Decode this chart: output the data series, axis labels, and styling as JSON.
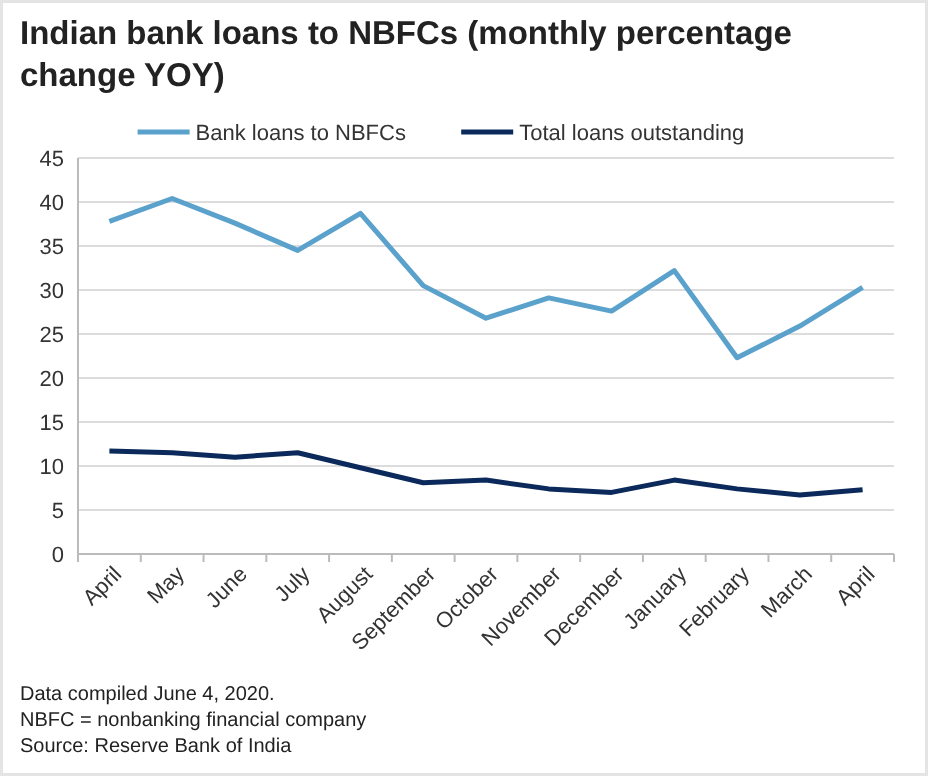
{
  "chart_data": {
    "type": "line",
    "title": "Indian bank loans to NBFCs (monthly percentage change YOY)",
    "categories": [
      "April",
      "May",
      "June",
      "July",
      "August",
      "September",
      "October",
      "November",
      "December",
      "January",
      "February",
      "March",
      "April"
    ],
    "series": [
      {
        "name": "Bank loans to NBFCs",
        "color": "#5aa1cc",
        "values": [
          37.8,
          40.4,
          37.6,
          34.5,
          38.7,
          30.5,
          26.8,
          29.1,
          27.6,
          32.2,
          22.3,
          25.9,
          30.3
        ]
      },
      {
        "name": "Total loans outstanding",
        "color": "#0b2a5b",
        "values": [
          11.7,
          11.5,
          11.0,
          11.5,
          9.8,
          8.1,
          8.4,
          7.4,
          7.0,
          8.4,
          7.4,
          6.7,
          7.3
        ]
      }
    ],
    "ylim": [
      0,
      45
    ],
    "yticks": [
      0,
      5,
      10,
      15,
      20,
      25,
      30,
      35,
      40,
      45
    ],
    "grid": "y",
    "legend": "top",
    "marker": "none",
    "line_style": "solid",
    "annotations": [
      "Data compiled June 4, 2020.",
      "NBFC = nonbanking financial company",
      "Source: Reserve Bank of India"
    ]
  }
}
